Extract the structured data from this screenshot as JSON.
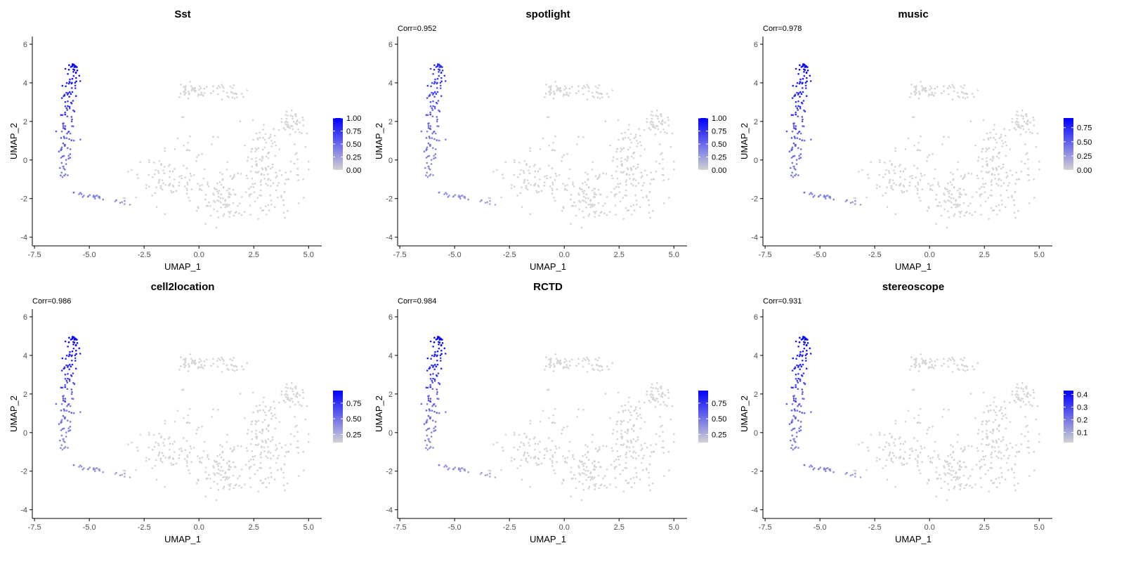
{
  "colors": {
    "low": "#d3d3d3",
    "high": "#0000ff",
    "axis": "#000000",
    "tick_text": "#4d4d4d"
  },
  "chart_data": [
    {
      "type": "scatter",
      "title": "Sst",
      "corr_label": "",
      "xlabel": "UMAP_1",
      "ylabel": "UMAP_2",
      "xlim": [
        -7.6,
        5.6
      ],
      "ylim": [
        -4.45,
        6.4
      ],
      "xticks": [
        -7.5,
        -5.0,
        -2.5,
        0.0,
        2.5,
        5.0
      ],
      "xtick_labels": [
        "-7.5",
        "-5.0",
        "-2.5",
        "0.0",
        "2.5",
        "5.0"
      ],
      "yticks": [
        -4,
        -2,
        0,
        2,
        4,
        6
      ],
      "ytick_labels": [
        "-4",
        "-2",
        "0",
        "2",
        "4",
        "6"
      ],
      "legend_position": "right",
      "legend_min": 0.0,
      "legend_max": 1.0,
      "value_max": 1.0,
      "legend_ticks": [
        0.0,
        0.25,
        0.5,
        0.75,
        1.0
      ],
      "legend_labels": [
        "0.00",
        "0.25",
        "0.50",
        "0.75",
        "1.00"
      ]
    },
    {
      "type": "scatter",
      "title": "spotlight",
      "corr_label": "Corr=0.952",
      "xlabel": "UMAP_1",
      "ylabel": "UMAP_2",
      "xlim": [
        -7.6,
        5.6
      ],
      "ylim": [
        -4.45,
        6.4
      ],
      "xticks": [
        -7.5,
        -5.0,
        -2.5,
        0.0,
        2.5,
        5.0
      ],
      "xtick_labels": [
        "-7.5",
        "-5.0",
        "-2.5",
        "0.0",
        "2.5",
        "5.0"
      ],
      "yticks": [
        -4,
        -2,
        0,
        2,
        4,
        6
      ],
      "ytick_labels": [
        "-4",
        "-2",
        "0",
        "2",
        "4",
        "6"
      ],
      "legend_position": "right",
      "legend_min": 0.0,
      "legend_max": 1.0,
      "value_max": 0.8,
      "legend_ticks": [
        0.0,
        0.25,
        0.5,
        0.75,
        1.0
      ],
      "legend_labels": [
        "0.00",
        "0.25",
        "0.50",
        "0.75",
        "1.00"
      ]
    },
    {
      "type": "scatter",
      "title": "music",
      "corr_label": "Corr=0.978",
      "xlabel": "UMAP_1",
      "ylabel": "UMAP_2",
      "xlim": [
        -7.6,
        5.6
      ],
      "ylim": [
        -4.45,
        6.4
      ],
      "xticks": [
        -7.5,
        -5.0,
        -2.5,
        0.0,
        2.5,
        5.0
      ],
      "xtick_labels": [
        "-7.5",
        "-5.0",
        "-2.5",
        "0.0",
        "2.5",
        "5.0"
      ],
      "yticks": [
        -4,
        -2,
        0,
        2,
        4,
        6
      ],
      "ytick_labels": [
        "-4",
        "-2",
        "0",
        "2",
        "4",
        "6"
      ],
      "legend_position": "right",
      "legend_min": 0.0,
      "legend_max": 0.92,
      "value_max": 0.92,
      "legend_ticks": [
        0.0,
        0.25,
        0.5,
        0.75
      ],
      "legend_labels": [
        "0.00",
        "0.25",
        "0.50",
        "0.75"
      ]
    },
    {
      "type": "scatter",
      "title": "cell2location",
      "corr_label": "Corr=0.986",
      "xlabel": "UMAP_1",
      "ylabel": "UMAP_2",
      "xlim": [
        -7.6,
        5.6
      ],
      "ylim": [
        -4.45,
        6.4
      ],
      "xticks": [
        -7.5,
        -5.0,
        -2.5,
        0.0,
        2.5,
        5.0
      ],
      "xtick_labels": [
        "-7.5",
        "-5.0",
        "-2.5",
        "0.0",
        "2.5",
        "5.0"
      ],
      "yticks": [
        -4,
        -2,
        0,
        2,
        4,
        6
      ],
      "ytick_labels": [
        "-4",
        "-2",
        "0",
        "2",
        "4",
        "6"
      ],
      "legend_position": "right",
      "legend_min": 0.12,
      "legend_max": 0.95,
      "value_max": 0.95,
      "legend_ticks": [
        0.25,
        0.5,
        0.75
      ],
      "legend_labels": [
        "0.25",
        "0.50",
        "0.75"
      ]
    },
    {
      "type": "scatter",
      "title": "RCTD",
      "corr_label": "Corr=0.984",
      "xlabel": "UMAP_1",
      "ylabel": "UMAP_2",
      "xlim": [
        -7.6,
        5.6
      ],
      "ylim": [
        -4.45,
        6.4
      ],
      "xticks": [
        -7.5,
        -5.0,
        -2.5,
        0.0,
        2.5,
        5.0
      ],
      "xtick_labels": [
        "-7.5",
        "-5.0",
        "-2.5",
        "0.0",
        "2.5",
        "5.0"
      ],
      "yticks": [
        -4,
        -2,
        0,
        2,
        4,
        6
      ],
      "ytick_labels": [
        "-4",
        "-2",
        "0",
        "2",
        "4",
        "6"
      ],
      "legend_position": "right",
      "legend_min": 0.12,
      "legend_max": 0.95,
      "value_max": 0.95,
      "legend_ticks": [
        0.25,
        0.5,
        0.75
      ],
      "legend_labels": [
        "0.25",
        "0.50",
        "0.75"
      ]
    },
    {
      "type": "scatter",
      "title": "stereoscope",
      "corr_label": "Corr=0.931",
      "xlabel": "UMAP_1",
      "ylabel": "UMAP_2",
      "xlim": [
        -7.6,
        5.6
      ],
      "ylim": [
        -4.45,
        6.4
      ],
      "xticks": [
        -7.5,
        -5.0,
        -2.5,
        0.0,
        2.5,
        5.0
      ],
      "xtick_labels": [
        "-7.5",
        "-5.0",
        "-2.5",
        "0.0",
        "2.5",
        "5.0"
      ],
      "yticks": [
        -4,
        -2,
        0,
        2,
        4,
        6
      ],
      "ytick_labels": [
        "-4",
        "-2",
        "0",
        "2",
        "4",
        "6"
      ],
      "legend_position": "right",
      "legend_min": 0.02,
      "legend_max": 0.43,
      "value_max": 0.43,
      "legend_ticks": [
        0.1,
        0.2,
        0.3,
        0.4
      ],
      "legend_labels": [
        "0.1",
        "0.2",
        "0.3",
        "0.4"
      ]
    }
  ]
}
